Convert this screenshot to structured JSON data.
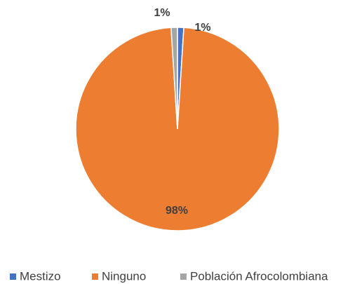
{
  "chart_data": {
    "type": "pie",
    "categories": [
      "Mestizo",
      "Ninguno",
      "Población Afrocolombiana"
    ],
    "values": [
      1,
      98,
      1
    ],
    "value_labels": [
      "1%",
      "98%",
      "1%"
    ],
    "colors": [
      "#4472c4",
      "#ed7d31",
      "#a5a5a5"
    ],
    "legend": "bottom"
  }
}
